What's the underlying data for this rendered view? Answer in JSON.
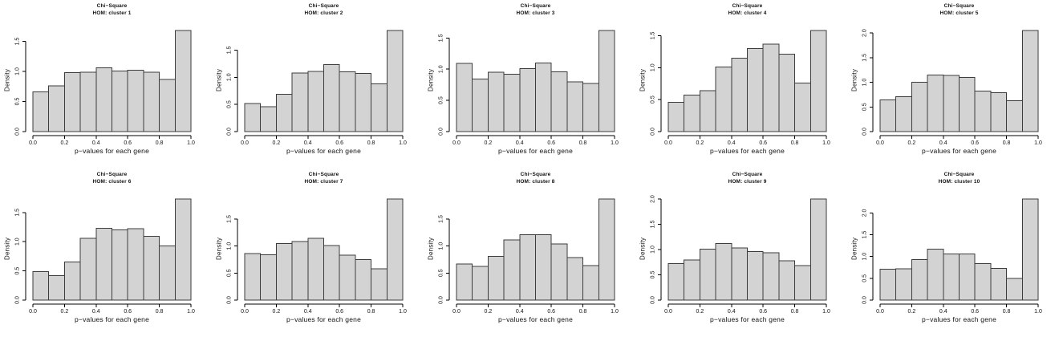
{
  "figure": {
    "background": "#ffffff",
    "bar_fill": "#d3d3d3",
    "bar_border": "#3c3c3c",
    "axis_color": "#000000",
    "x_tick_labels": [
      "0.0",
      "0.2",
      "0.4",
      "0.6",
      "0.8",
      "1.0"
    ]
  },
  "chart_data": [
    {
      "type": "bar",
      "title": "Chi−Square",
      "subtitle": "HOM: cluster 1",
      "xlabel": "p−values for each gene",
      "ylabel": "Density",
      "bin_width": 0.1,
      "x_range": [
        0,
        1
      ],
      "y_tick_labels": [
        "0.0",
        "0.5",
        "1.0",
        "1.5"
      ],
      "values": [
        0.66,
        0.76,
        0.98,
        0.99,
        1.06,
        1.01,
        1.02,
        0.99,
        0.87,
        1.68
      ]
    },
    {
      "type": "bar",
      "title": "Chi−Square",
      "subtitle": "HOM: cluster 2",
      "xlabel": "p−values for each gene",
      "ylabel": "Density",
      "bin_width": 0.1,
      "x_range": [
        0,
        1
      ],
      "y_tick_labels": [
        "0.0",
        "0.5",
        "1.0",
        "1.5"
      ],
      "values": [
        0.52,
        0.46,
        0.69,
        1.08,
        1.11,
        1.23,
        1.1,
        1.07,
        0.88,
        1.86
      ]
    },
    {
      "type": "bar",
      "title": "Chi−Square",
      "subtitle": "HOM: cluster 3",
      "xlabel": "p−values for each gene",
      "ylabel": "Density",
      "bin_width": 0.1,
      "x_range": [
        0,
        1
      ],
      "y_tick_labels": [
        "0.0",
        "0.5",
        "1.0",
        "1.5"
      ],
      "values": [
        1.09,
        0.84,
        0.95,
        0.92,
        1.01,
        1.1,
        0.96,
        0.8,
        0.77,
        1.62
      ]
    },
    {
      "type": "bar",
      "title": "Chi−Square",
      "subtitle": "HOM: cluster 4",
      "xlabel": "p−values for each gene",
      "ylabel": "Density",
      "bin_width": 0.1,
      "x_range": [
        0,
        1
      ],
      "y_tick_labels": [
        "0.0",
        "0.5",
        "1.0",
        "1.5"
      ],
      "values": [
        0.46,
        0.57,
        0.64,
        1.01,
        1.15,
        1.3,
        1.37,
        1.21,
        0.76,
        1.58
      ]
    },
    {
      "type": "bar",
      "title": "Chi−Square",
      "subtitle": "HOM: cluster 5",
      "xlabel": "p−values for each gene",
      "ylabel": "Density",
      "bin_width": 0.1,
      "x_range": [
        0,
        1
      ],
      "y_tick_labels": [
        "0.0",
        "0.5",
        "1.0",
        "1.5",
        "2.0"
      ],
      "values": [
        0.64,
        0.71,
        1.0,
        1.15,
        1.14,
        1.1,
        0.82,
        0.79,
        0.63,
        2.05
      ]
    },
    {
      "type": "bar",
      "title": "Chi−Square",
      "subtitle": "HOM: cluster 6",
      "xlabel": "p−values for each gene",
      "ylabel": "Density",
      "bin_width": 0.1,
      "x_range": [
        0,
        1
      ],
      "y_tick_labels": [
        "0.0",
        "0.5",
        "1.0",
        "1.5"
      ],
      "values": [
        0.49,
        0.42,
        0.65,
        1.06,
        1.23,
        1.2,
        1.22,
        1.09,
        0.93,
        1.73
      ]
    },
    {
      "type": "bar",
      "title": "Chi−Square",
      "subtitle": "HOM: cluster 7",
      "xlabel": "p−values for each gene",
      "ylabel": "Density",
      "bin_width": 0.1,
      "x_range": [
        0,
        1
      ],
      "y_tick_labels": [
        "0.0",
        "0.5",
        "1.0",
        "1.5"
      ],
      "values": [
        0.86,
        0.84,
        1.05,
        1.08,
        1.14,
        1.01,
        0.83,
        0.75,
        0.58,
        1.87
      ]
    },
    {
      "type": "bar",
      "title": "Chi−Square",
      "subtitle": "HOM: cluster 8",
      "xlabel": "p−values for each gene",
      "ylabel": "Density",
      "bin_width": 0.1,
      "x_range": [
        0,
        1
      ],
      "y_tick_labels": [
        "0.0",
        "0.5",
        "1.0",
        "1.5"
      ],
      "values": [
        0.67,
        0.62,
        0.81,
        1.11,
        1.21,
        1.21,
        1.04,
        0.79,
        0.64,
        1.87
      ]
    },
    {
      "type": "bar",
      "title": "Chi−Square",
      "subtitle": "HOM: cluster 9",
      "xlabel": "p−values for each gene",
      "ylabel": "Density",
      "bin_width": 0.1,
      "x_range": [
        0,
        1
      ],
      "y_tick_labels": [
        "0.0",
        "0.5",
        "1.0",
        "1.5",
        "2.0"
      ],
      "values": [
        0.72,
        0.79,
        1.01,
        1.12,
        1.03,
        0.96,
        0.94,
        0.78,
        0.68,
        2.0
      ]
    },
    {
      "type": "bar",
      "title": "Chi−Square",
      "subtitle": "HOM: cluster 10",
      "xlabel": "p−values for each gene",
      "ylabel": "Density",
      "bin_width": 0.1,
      "x_range": [
        0,
        1
      ],
      "y_tick_labels": [
        "0.0",
        "0.5",
        "1.0",
        "1.5",
        "2.0"
      ],
      "values": [
        0.71,
        0.72,
        0.93,
        1.17,
        1.06,
        1.06,
        0.84,
        0.73,
        0.5,
        2.32
      ]
    }
  ]
}
